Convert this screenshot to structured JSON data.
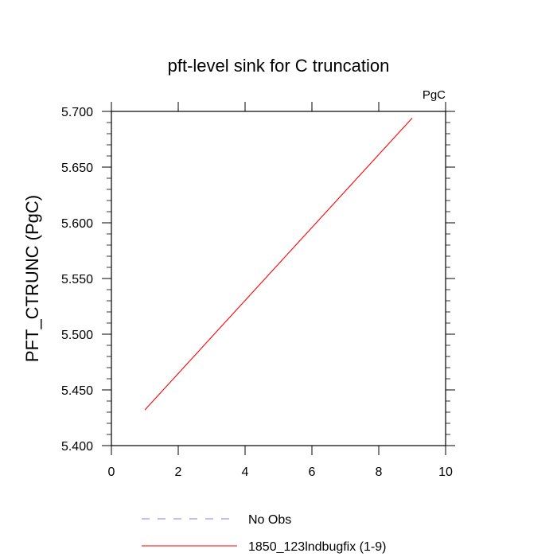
{
  "chart_data": {
    "type": "line",
    "title": "pft-level sink for C truncation",
    "units_label": "PgC",
    "xlabel": "",
    "ylabel": "PFT_CTRUNC  (PgC)",
    "xlim": [
      0,
      10
    ],
    "ylim": [
      5.4,
      5.7
    ],
    "x_ticks": [
      0,
      2,
      4,
      6,
      8,
      10
    ],
    "x_tick_labels": [
      "0",
      "2",
      "4",
      "6",
      "8",
      "10"
    ],
    "y_ticks": [
      5.4,
      5.45,
      5.5,
      5.55,
      5.6,
      5.65,
      5.7
    ],
    "y_tick_labels": [
      "5.400",
      "5.450",
      "5.500",
      "5.550",
      "5.600",
      "5.650",
      "5.700"
    ],
    "grid": false,
    "legend_position": "bottom",
    "series": [
      {
        "name": "1850_123lndbugfix (1-9)",
        "color": "#ff0000",
        "dash": "solid",
        "x": [
          1,
          9
        ],
        "y": [
          5.432,
          5.694
        ]
      }
    ],
    "legend": [
      {
        "label": "No Obs",
        "color": "#7f7fff",
        "dash": "dashed"
      },
      {
        "label": "1850_123lndbugfix (1-9)",
        "color": "#ff0000",
        "dash": "solid"
      }
    ]
  }
}
